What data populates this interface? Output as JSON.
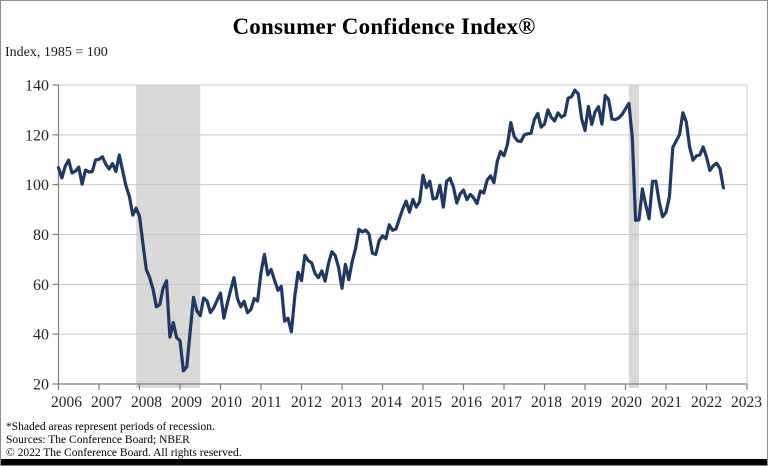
{
  "figure": {
    "title": "Consumer Confidence Index®",
    "subtitle": "Index, 1985 = 100",
    "footnotes": [
      "*Shaded areas represent periods of recession.",
      "Sources: The Conference Board; NBER",
      "© 2022 The Conference Board. All rights reserved."
    ]
  },
  "colors": {
    "line": "#1F3864",
    "recession_band": "#D9D9D9",
    "gridline": "#C9C9C9",
    "axis": "#808080",
    "text": "#262626",
    "bottom_bar": "#000000"
  },
  "chart_data": {
    "type": "line",
    "title": "Consumer Confidence Index®",
    "ylabel": "Index, 1985 = 100",
    "ylim": [
      20,
      140
    ],
    "y_tick_step": 20,
    "y_tick_labels": [
      "20",
      "40",
      "60",
      "80",
      "100",
      "120",
      "140"
    ],
    "x_start_month": "2006-01",
    "x_end_month": "2023-01",
    "x_tick_labels": [
      "2006",
      "2007",
      "2008",
      "2009",
      "2010",
      "2011",
      "2012",
      "2013",
      "2014",
      "2015",
      "2016",
      "2017",
      "2018",
      "2019",
      "2020",
      "2021",
      "2022",
      "2023"
    ],
    "grid": "horizontal",
    "legend": "none",
    "recessions": [
      {
        "from": "2007-12",
        "to": "2009-06"
      },
      {
        "from": "2020-02",
        "to": "2020-04"
      }
    ],
    "series": [
      {
        "name": "Consumer Confidence Index",
        "start": "2006-01",
        "frequency": "monthly",
        "values": [
          106.8,
          102.7,
          107.5,
          109.8,
          104.7,
          105.4,
          107.0,
          100.2,
          105.9,
          105.1,
          105.3,
          110.0,
          110.2,
          111.2,
          108.2,
          106.3,
          108.5,
          105.3,
          111.9,
          105.6,
          99.5,
          95.2,
          87.8,
          90.6,
          87.3,
          76.4,
          65.9,
          62.8,
          58.1,
          51.0,
          51.9,
          58.5,
          61.4,
          38.8,
          44.7,
          38.6,
          37.4,
          25.3,
          26.9,
          40.8,
          54.8,
          49.3,
          47.4,
          54.5,
          53.4,
          48.7,
          50.6,
          53.6,
          56.5,
          46.4,
          52.3,
          57.7,
          62.7,
          54.3,
          51.0,
          53.2,
          48.6,
          49.9,
          54.3,
          53.3,
          64.8,
          72.0,
          63.8,
          66.0,
          61.7,
          57.6,
          59.2,
          45.2,
          46.4,
          40.9,
          55.2,
          64.8,
          61.5,
          71.6,
          69.5,
          68.7,
          64.4,
          62.7,
          65.4,
          61.3,
          68.4,
          73.1,
          71.5,
          66.7,
          58.4,
          68.0,
          61.9,
          69.0,
          74.3,
          82.1,
          81.0,
          81.8,
          80.2,
          72.4,
          72.0,
          77.5,
          79.4,
          78.3,
          83.9,
          81.7,
          82.2,
          86.4,
          90.3,
          93.4,
          89.0,
          94.1,
          91.0,
          93.1,
          103.8,
          98.8,
          101.4,
          94.3,
          94.6,
          99.8,
          91.0,
          101.3,
          102.6,
          99.1,
          92.6,
          96.3,
          97.8,
          94.0,
          96.1,
          94.7,
          92.4,
          97.4,
          96.7,
          101.8,
          103.5,
          100.8,
          109.4,
          113.3,
          111.6,
          116.1,
          124.9,
          119.4,
          117.6,
          117.3,
          120.0,
          120.4,
          120.6,
          126.2,
          128.6,
          123.1,
          124.3,
          130.0,
          127.0,
          125.6,
          128.8,
          127.1,
          127.9,
          134.7,
          135.3,
          137.9,
          136.4,
          126.6,
          121.7,
          131.4,
          124.2,
          129.2,
          131.3,
          124.3,
          135.8,
          134.2,
          126.3,
          126.1,
          126.8,
          128.2,
          130.4,
          132.6,
          118.8,
          85.7,
          85.9,
          98.3,
          91.7,
          86.3,
          101.3,
          101.4,
          92.9,
          87.1,
          88.9,
          95.2,
          114.9,
          117.5,
          120.0,
          128.9,
          125.1,
          115.2,
          109.8,
          111.6,
          111.9,
          115.2,
          111.1,
          105.7,
          107.6,
          108.6,
          106.4,
          98.7
        ]
      }
    ]
  }
}
